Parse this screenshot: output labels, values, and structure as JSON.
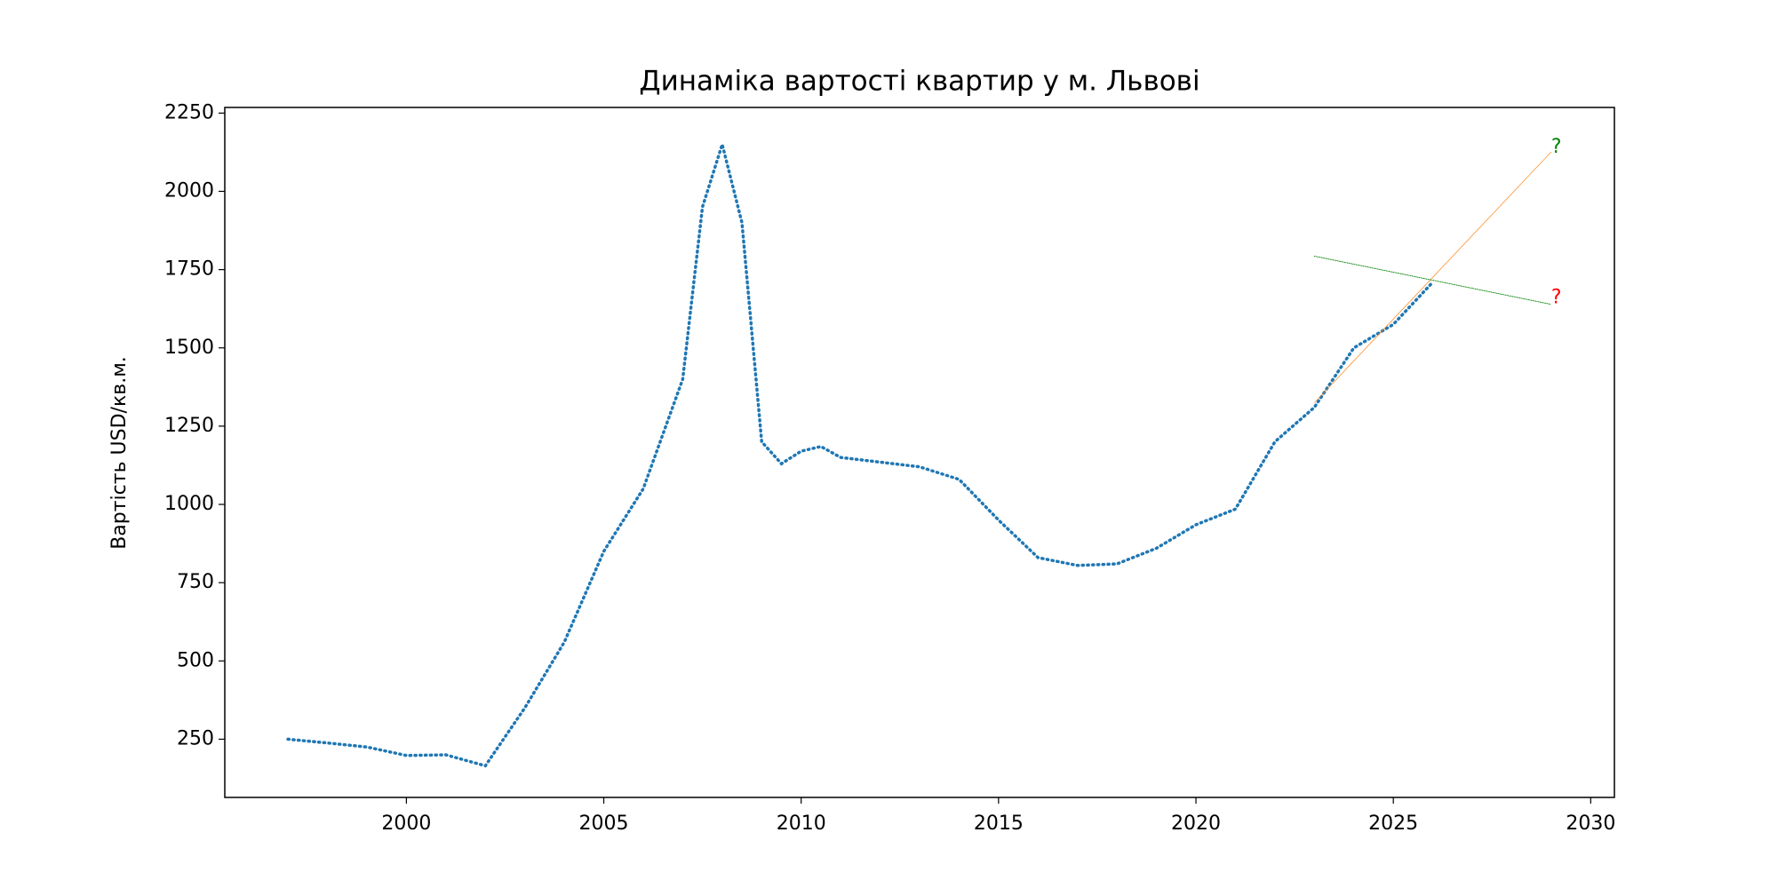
{
  "chart_data": {
    "type": "line",
    "title": "Динаміка вартості квартир у м. Львові",
    "y_label": "Вартість USD/кв.м.",
    "xlim": [
      1995.4,
      2030.6
    ],
    "ylim": [
      64,
      2268
    ],
    "xticks": [
      2000,
      2005,
      2010,
      2015,
      2020,
      2025,
      2030
    ],
    "yticks": [
      250,
      500,
      750,
      1000,
      1250,
      1500,
      1750,
      2000,
      2250
    ],
    "grid": false,
    "series": [
      {
        "color": "#1f77b4",
        "linestyle": "dotted",
        "linewidth": 3.5,
        "x": [
          1997,
          1998,
          1999,
          2000,
          2001,
          2002,
          2003,
          2004,
          2005,
          2006,
          2007,
          2007.5,
          2008,
          2008.5,
          2009,
          2009.5,
          2010,
          2010.5,
          2011,
          2012,
          2013,
          2014,
          2015,
          2016,
          2017,
          2018,
          2019,
          2020,
          2021,
          2022,
          2023,
          2024,
          2025,
          2026
        ],
        "values": [
          250,
          238,
          225,
          198,
          200,
          165,
          350,
          560,
          850,
          1050,
          1400,
          1950,
          2150,
          1900,
          1200,
          1130,
          1170,
          1185,
          1150,
          1135,
          1120,
          1080,
          950,
          830,
          805,
          810,
          860,
          935,
          985,
          1200,
          1310,
          1500,
          1575,
          1710
        ]
      },
      {
        "color": "#ff7f0e",
        "linestyle": "solid",
        "linewidth": 0.7,
        "x": [
          2023,
          2029
        ],
        "values": [
          1325,
          2126
        ]
      },
      {
        "color": "green",
        "linestyle": "dotted",
        "linewidth": 1,
        "x": [
          2023,
          2029
        ],
        "values": [
          1793,
          1639
        ]
      }
    ],
    "annotations": [
      {
        "text": "?",
        "x": 2029,
        "y": 2140,
        "color": "green"
      },
      {
        "text": "?",
        "x": 2029,
        "y": 1660,
        "color": "red"
      }
    ]
  }
}
